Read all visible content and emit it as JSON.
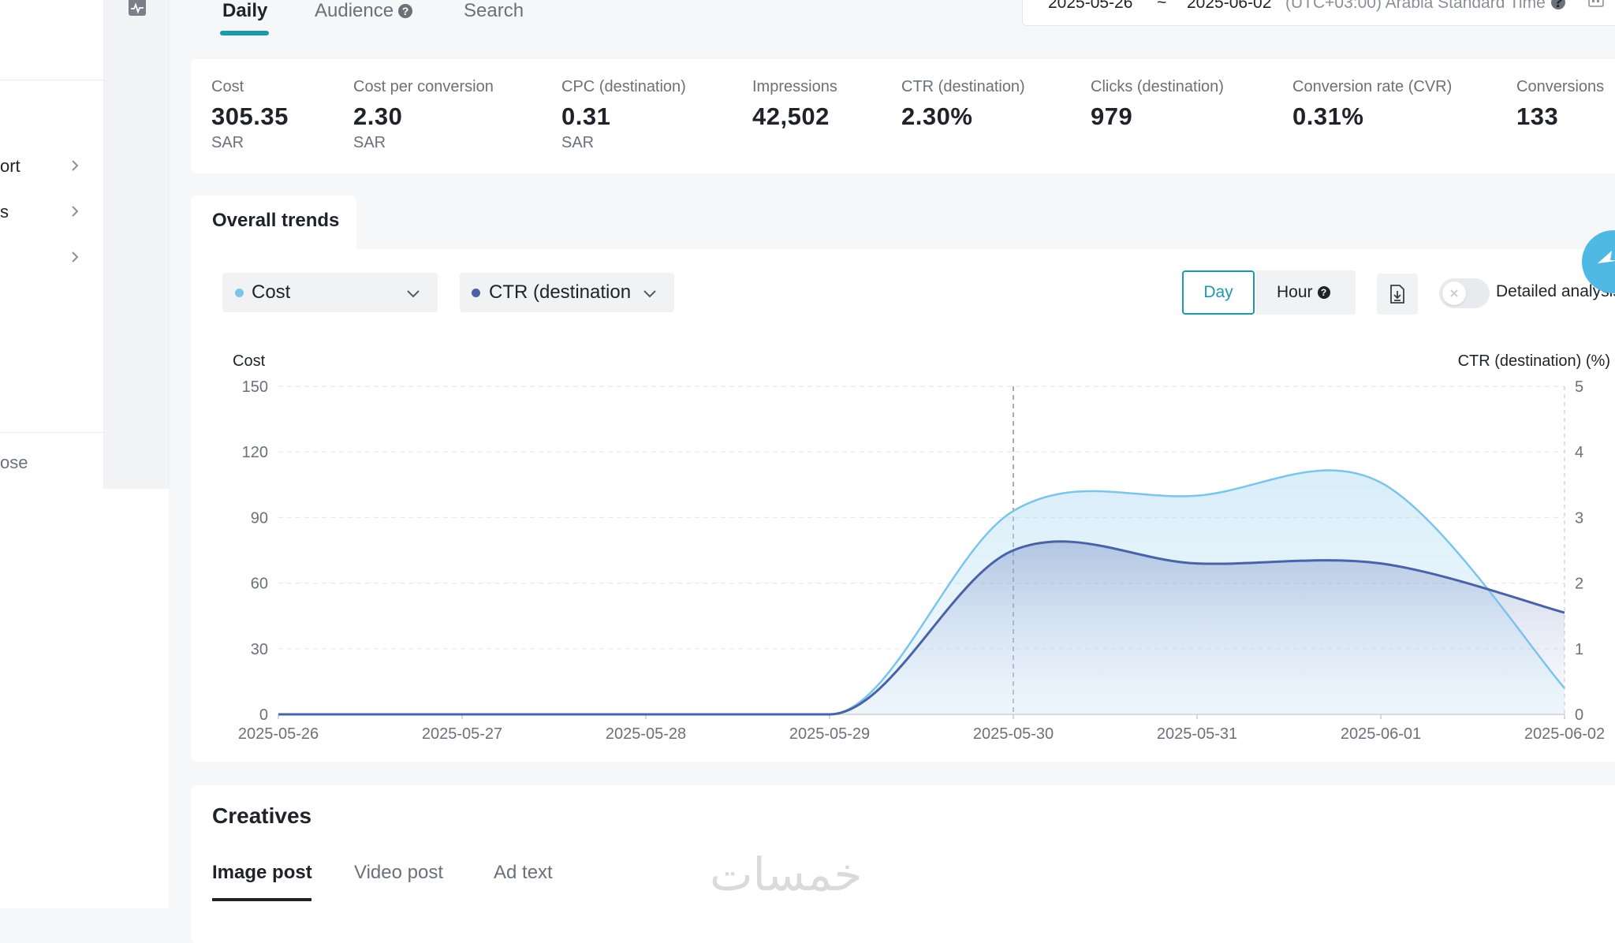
{
  "sidebar": {
    "items": [
      {
        "label": "ort"
      },
      {
        "label": "s"
      },
      {
        "label": ""
      }
    ],
    "bottom_label": "ose"
  },
  "top_tabs": [
    {
      "label": "Daily",
      "active": true
    },
    {
      "label": "Audience",
      "active": false
    },
    {
      "label": "Search",
      "active": false
    }
  ],
  "date_range": {
    "start": "2025-05-26",
    "separator": "~",
    "end": "2025-06-02",
    "timezone": "(UTC+03:00) Arabia Standard Time"
  },
  "metrics": [
    {
      "label": "Cost",
      "value": "305.35",
      "unit": "SAR"
    },
    {
      "label": "Cost per conversion",
      "value": "2.30",
      "unit": "SAR"
    },
    {
      "label": "CPC (destination)",
      "value": "0.31",
      "unit": "SAR"
    },
    {
      "label": "Impressions",
      "value": "42,502",
      "unit": ""
    },
    {
      "label": "CTR (destination)",
      "value": "2.30%",
      "unit": ""
    },
    {
      "label": "Clicks (destination)",
      "value": "979",
      "unit": ""
    },
    {
      "label": "Conversion rate (CVR)",
      "value": "0.31%",
      "unit": ""
    },
    {
      "label": "Conversions",
      "value": "133",
      "unit": ""
    }
  ],
  "trends": {
    "title": "Overall trends",
    "metric_left": {
      "label": "Cost",
      "color": "#7cc4ea"
    },
    "metric_right": {
      "label": "CTR (destination",
      "color": "#4a63a8"
    },
    "day_label": "Day",
    "hour_label": "Hour",
    "detailed_label": "Detailed analysis"
  },
  "chart_data": {
    "type": "area",
    "x": [
      "2025-05-26",
      "2025-05-27",
      "2025-05-28",
      "2025-05-29",
      "2025-05-30",
      "2025-05-31",
      "2025-06-01",
      "2025-06-02"
    ],
    "ylabel_left": "Cost",
    "ylabel_right": "CTR (destination) (%)",
    "ylim_left": [
      0,
      150
    ],
    "ylim_right": [
      0,
      5
    ],
    "yticks_left": [
      "0",
      "30",
      "60",
      "90",
      "120",
      "150"
    ],
    "yticks_right": [
      "0",
      "1",
      "2",
      "3",
      "4",
      "5"
    ],
    "series": [
      {
        "name": "Cost",
        "axis": "left",
        "color": "#7cc4ea",
        "values": [
          0,
          0,
          0,
          0,
          93,
          100,
          106,
          12
        ]
      },
      {
        "name": "CTR (destination)",
        "axis": "right",
        "color": "#4a63a8",
        "values": [
          0,
          0,
          0,
          0,
          2.5,
          2.3,
          2.3,
          1.55
        ]
      }
    ],
    "grid": true,
    "hover_x": "2025-05-30"
  },
  "creatives": {
    "title": "Creatives",
    "tabs": [
      {
        "label": "Image post",
        "active": true
      },
      {
        "label": "Video post",
        "active": false
      },
      {
        "label": "Ad text",
        "active": false
      }
    ]
  },
  "watermark": "خمسات"
}
